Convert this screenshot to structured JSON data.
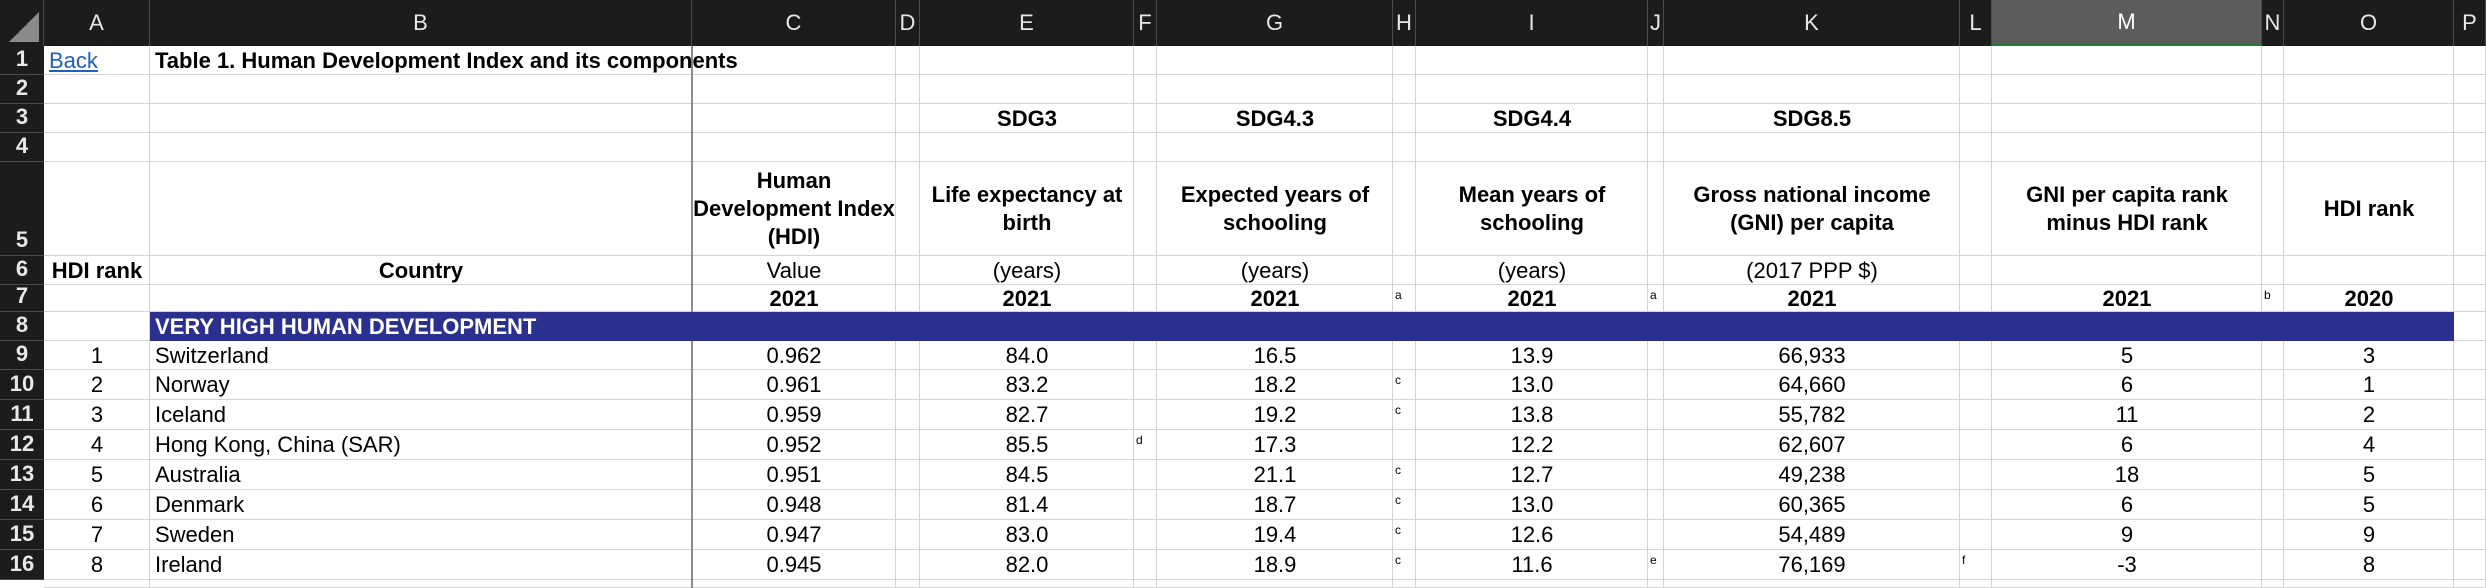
{
  "colors": {
    "header_bg": "#1c1c1c",
    "band": "#2b2f8e",
    "link": "#1f5fbf",
    "selected_col": "#5c5c5c",
    "selected_underline": "#1f7a3a"
  },
  "column_letters": [
    "A",
    "B",
    "C",
    "D",
    "E",
    "F",
    "G",
    "H",
    "I",
    "J",
    "K",
    "L",
    "M",
    "N",
    "O",
    "P"
  ],
  "selected_column": "M",
  "row_numbers": [
    "1",
    "2",
    "3",
    "4",
    "5",
    "6",
    "7",
    "8",
    "9",
    "10",
    "11",
    "12",
    "13",
    "14",
    "15",
    "16"
  ],
  "row1": {
    "back_link": "Back",
    "title": "Table 1. Human Development Index and its components"
  },
  "sdg": {
    "life": "SDG3",
    "schooling_expected": "SDG4.3",
    "schooling_mean": "SDG4.4",
    "gni": "SDG8.5"
  },
  "headers": {
    "hdi": "Human Development Index (HDI)",
    "life": "Life expectancy at birth",
    "expected": "Expected years of schooling",
    "mean": "Mean years of schooling",
    "gni": "Gross national income (GNI) per capita",
    "gni_rank": "GNI per capita rank minus HDI rank",
    "hdi_rank_2020": "HDI rank"
  },
  "units": {
    "hdi_rank": "HDI rank",
    "country": "Country",
    "value": "Value",
    "life": "(years)",
    "expected": "(years)",
    "mean": "(years)",
    "gni": "(2017 PPP $)"
  },
  "years": {
    "hdi": "2021",
    "life": "2021",
    "expected": "2021",
    "expected_note": "a",
    "mean": "2021",
    "mean_note": "a",
    "gni": "2021",
    "gni_rank": "2021",
    "gni_rank_note": "b",
    "hdi_rank_2020": "2020"
  },
  "group_label": "VERY HIGH HUMAN DEVELOPMENT",
  "rows": [
    {
      "rank": "1",
      "country": "Switzerland",
      "hdi": "0.962",
      "life": "84.0",
      "life_note": "",
      "expected": "16.5",
      "expected_note": "",
      "mean": "13.9",
      "mean_note": "",
      "gni": "66,933",
      "gni_note": "",
      "gni_rank": "5",
      "rank2020": "3"
    },
    {
      "rank": "2",
      "country": "Norway",
      "hdi": "0.961",
      "life": "83.2",
      "life_note": "",
      "expected": "18.2",
      "expected_note": "c",
      "mean": "13.0",
      "mean_note": "",
      "gni": "64,660",
      "gni_note": "",
      "gni_rank": "6",
      "rank2020": "1"
    },
    {
      "rank": "3",
      "country": "Iceland",
      "hdi": "0.959",
      "life": "82.7",
      "life_note": "",
      "expected": "19.2",
      "expected_note": "c",
      "mean": "13.8",
      "mean_note": "",
      "gni": "55,782",
      "gni_note": "",
      "gni_rank": "11",
      "rank2020": "2"
    },
    {
      "rank": "4",
      "country": "Hong Kong, China (SAR)",
      "hdi": "0.952",
      "life": "85.5",
      "life_note": "d",
      "expected": "17.3",
      "expected_note": "",
      "mean": "12.2",
      "mean_note": "",
      "gni": "62,607",
      "gni_note": "",
      "gni_rank": "6",
      "rank2020": "4"
    },
    {
      "rank": "5",
      "country": "Australia",
      "hdi": "0.951",
      "life": "84.5",
      "life_note": "",
      "expected": "21.1",
      "expected_note": "c",
      "mean": "12.7",
      "mean_note": "",
      "gni": "49,238",
      "gni_note": "",
      "gni_rank": "18",
      "rank2020": "5"
    },
    {
      "rank": "6",
      "country": "Denmark",
      "hdi": "0.948",
      "life": "81.4",
      "life_note": "",
      "expected": "18.7",
      "expected_note": "c",
      "mean": "13.0",
      "mean_note": "",
      "gni": "60,365",
      "gni_note": "",
      "gni_rank": "6",
      "rank2020": "5"
    },
    {
      "rank": "7",
      "country": "Sweden",
      "hdi": "0.947",
      "life": "83.0",
      "life_note": "",
      "expected": "19.4",
      "expected_note": "c",
      "mean": "12.6",
      "mean_note": "",
      "gni": "54,489",
      "gni_note": "",
      "gni_rank": "9",
      "rank2020": "9"
    },
    {
      "rank": "8",
      "country": "Ireland",
      "hdi": "0.945",
      "life": "82.0",
      "life_note": "",
      "expected": "18.9",
      "expected_note": "c",
      "mean": "11.6",
      "mean_note": "e",
      "gni": "76,169",
      "gni_note": "f",
      "gni_rank": "-3",
      "rank2020": "8"
    }
  ]
}
